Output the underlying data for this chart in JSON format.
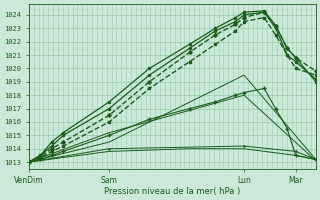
{
  "xlabel": "Pression niveau de la mer( hPa )",
  "bg_color": "#cce8d8",
  "grid_color": "#99ccb0",
  "line_color": "#1a5c1a",
  "yticks": [
    1013,
    1014,
    1015,
    1016,
    1017,
    1018,
    1019,
    1020,
    1021,
    1022,
    1023,
    1024
  ],
  "ylim": [
    1012.5,
    1024.8
  ],
  "xtick_labels": [
    "VenDim",
    "Sam",
    "Lun",
    "Mar"
  ],
  "xtick_positions": [
    0.0,
    0.28,
    0.75,
    0.93
  ],
  "xlim": [
    0.0,
    1.0
  ],
  "series": [
    {
      "x": [
        0.0,
        0.04,
        0.08,
        0.12,
        0.28,
        0.42,
        0.56,
        0.65,
        0.72,
        0.75,
        0.82,
        0.86,
        0.9,
        0.93,
        1.0
      ],
      "y": [
        1013.0,
        1013.3,
        1013.8,
        1014.2,
        1016.0,
        1018.5,
        1020.5,
        1021.8,
        1022.8,
        1023.5,
        1023.8,
        1022.5,
        1021.0,
        1020.0,
        1019.5
      ],
      "linestyle": "--",
      "marker": "s",
      "markersize": 1.8,
      "linewidth": 1.0
    },
    {
      "x": [
        0.0,
        0.04,
        0.08,
        0.12,
        0.28,
        0.42,
        0.56,
        0.65,
        0.72,
        0.75,
        0.82,
        0.86,
        0.9,
        0.93,
        1.0
      ],
      "y": [
        1013.0,
        1013.4,
        1014.0,
        1014.5,
        1016.5,
        1019.0,
        1021.2,
        1022.5,
        1023.3,
        1023.8,
        1024.2,
        1023.2,
        1021.5,
        1020.8,
        1019.8
      ],
      "linestyle": "--",
      "marker": "D",
      "markersize": 1.8,
      "linewidth": 1.0
    },
    {
      "x": [
        0.0,
        0.04,
        0.08,
        0.12,
        0.28,
        0.42,
        0.56,
        0.65,
        0.72,
        0.75,
        0.82,
        0.86,
        0.9,
        0.93,
        1.0
      ],
      "y": [
        1013.0,
        1013.5,
        1014.2,
        1015.0,
        1017.0,
        1019.5,
        1021.5,
        1022.8,
        1023.5,
        1024.0,
        1024.2,
        1023.0,
        1021.0,
        1020.5,
        1019.2
      ],
      "linestyle": "-",
      "marker": "o",
      "markersize": 1.5,
      "linewidth": 0.9
    },
    {
      "x": [
        0.0,
        0.04,
        0.08,
        0.12,
        0.28,
        0.42,
        0.56,
        0.65,
        0.72,
        0.75,
        0.82,
        0.86,
        0.9,
        0.93,
        1.0
      ],
      "y": [
        1013.0,
        1013.5,
        1014.5,
        1015.2,
        1017.5,
        1020.0,
        1021.8,
        1023.0,
        1023.8,
        1024.2,
        1024.3,
        1023.2,
        1021.5,
        1020.8,
        1019.0
      ],
      "linestyle": "-",
      "marker": "o",
      "markersize": 1.5,
      "linewidth": 0.9
    },
    {
      "x": [
        0.0,
        0.04,
        0.08,
        0.12,
        0.28,
        0.42,
        0.56,
        0.65,
        0.72,
        0.75,
        0.82,
        0.86,
        0.9,
        0.93,
        1.0
      ],
      "y": [
        1013.0,
        1013.2,
        1013.5,
        1013.8,
        1015.0,
        1016.2,
        1017.0,
        1017.5,
        1018.0,
        1018.2,
        1018.5,
        1017.0,
        1015.5,
        1013.5,
        1013.2
      ],
      "linestyle": "-",
      "marker": "+",
      "markersize": 2.5,
      "linewidth": 0.8
    },
    {
      "x": [
        0.0,
        0.28,
        0.75,
        1.0
      ],
      "y": [
        1013.0,
        1014.5,
        1019.5,
        1013.2
      ],
      "linestyle": "-",
      "marker": null,
      "markersize": 0,
      "linewidth": 0.7
    },
    {
      "x": [
        0.0,
        0.28,
        0.75,
        1.0
      ],
      "y": [
        1013.0,
        1015.2,
        1018.0,
        1013.1
      ],
      "linestyle": "-",
      "marker": null,
      "markersize": 0,
      "linewidth": 0.7
    },
    {
      "x": [
        0.0,
        0.28,
        0.75,
        0.93,
        1.0
      ],
      "y": [
        1013.0,
        1014.0,
        1014.2,
        1013.8,
        1013.2
      ],
      "linestyle": "-",
      "marker": "+",
      "markersize": 2.0,
      "linewidth": 0.7
    },
    {
      "x": [
        0.0,
        0.28,
        0.56,
        0.75,
        0.93,
        1.0
      ],
      "y": [
        1013.0,
        1013.8,
        1014.0,
        1014.0,
        1013.5,
        1013.2
      ],
      "linestyle": "-",
      "marker": null,
      "markersize": 0,
      "linewidth": 0.7
    }
  ]
}
